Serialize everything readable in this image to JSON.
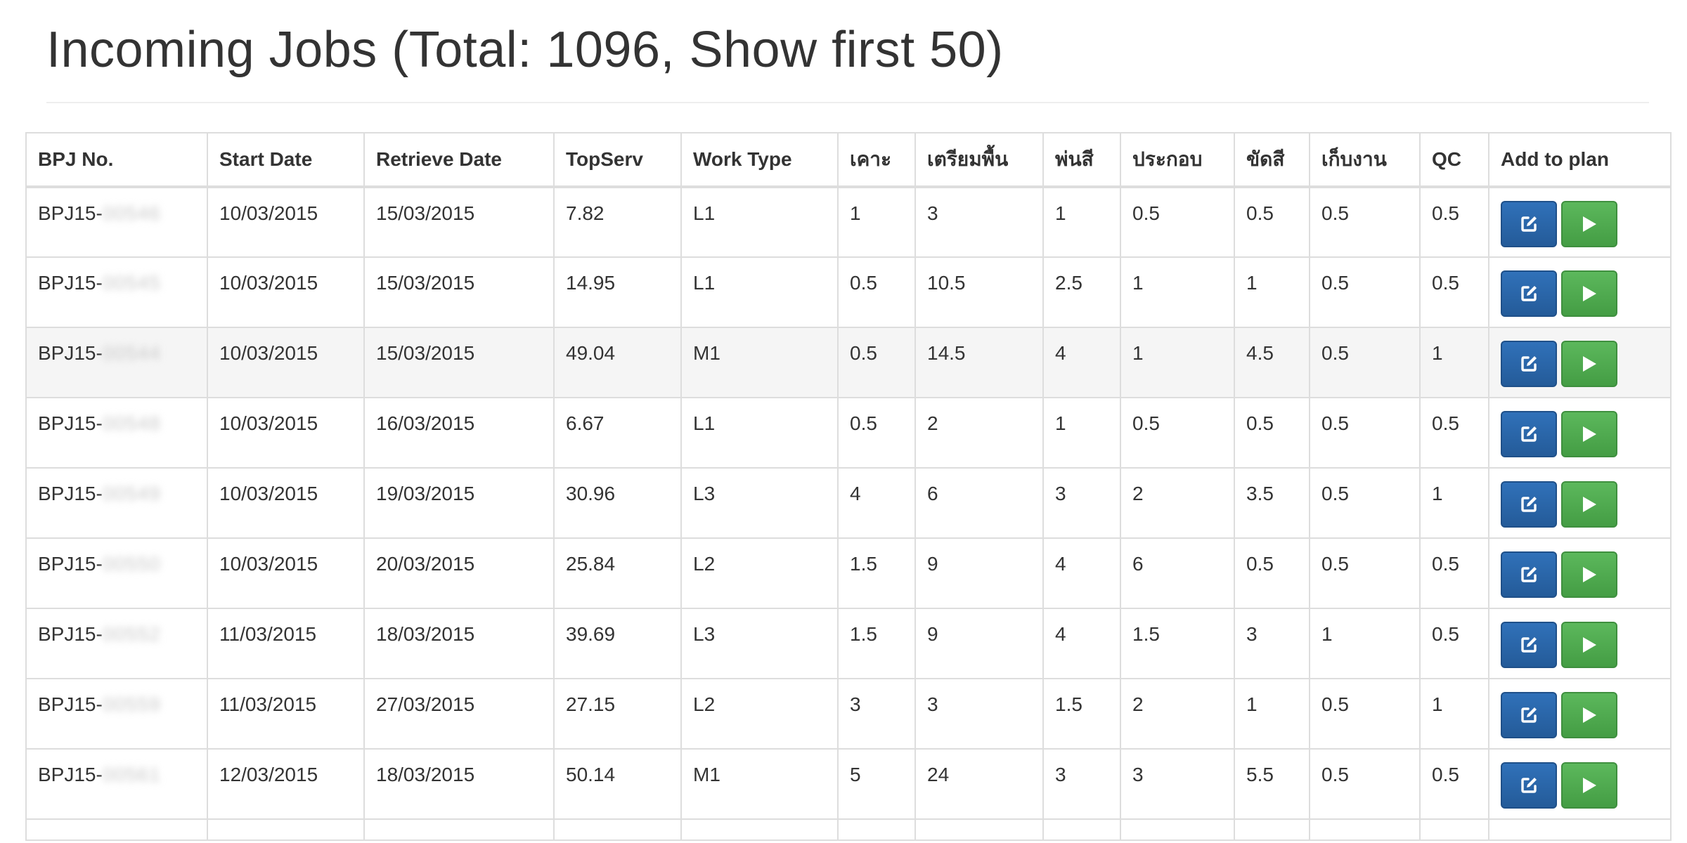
{
  "page": {
    "title": "Incoming Jobs (Total: 1096, Show first 50)"
  },
  "colors": {
    "edit_button": "#286090",
    "play_button": "#5cb85c",
    "border": "#dddddd",
    "hover_row": "#f5f5f5"
  },
  "table": {
    "headers": {
      "bpj_no": "BPJ No.",
      "start_date": "Start Date",
      "retrieve_date": "Retrieve Date",
      "topserv": "TopServ",
      "work_type": "Work Type",
      "knock": "เคาะ",
      "prep": "เตรียมพื้น",
      "paint": "พ่นสี",
      "assemble": "ประกอบ",
      "polish": "ขัดสี",
      "finish": "เก็บงาน",
      "qc": "QC",
      "add_to_plan": "Add to plan"
    },
    "rows": [
      {
        "bpj_prefix": "BPJ15-",
        "bpj_suffix": "00546",
        "start": "10/03/2015",
        "retrieve": "15/03/2015",
        "topserv": "7.82",
        "work_type": "L1",
        "knock": "1",
        "prep": "3",
        "paint": "1",
        "assemble": "0.5",
        "polish": "0.5",
        "finish": "0.5",
        "qc": "0.5"
      },
      {
        "bpj_prefix": "BPJ15-",
        "bpj_suffix": "00545",
        "start": "10/03/2015",
        "retrieve": "15/03/2015",
        "topserv": "14.95",
        "work_type": "L1",
        "knock": "0.5",
        "prep": "10.5",
        "paint": "2.5",
        "assemble": "1",
        "polish": "1",
        "finish": "0.5",
        "qc": "0.5"
      },
      {
        "bpj_prefix": "BPJ15-",
        "bpj_suffix": "00544",
        "start": "10/03/2015",
        "retrieve": "15/03/2015",
        "topserv": "49.04",
        "work_type": "M1",
        "knock": "0.5",
        "prep": "14.5",
        "paint": "4",
        "assemble": "1",
        "polish": "4.5",
        "finish": "0.5",
        "qc": "1"
      },
      {
        "bpj_prefix": "BPJ15-",
        "bpj_suffix": "00548",
        "start": "10/03/2015",
        "retrieve": "16/03/2015",
        "topserv": "6.67",
        "work_type": "L1",
        "knock": "0.5",
        "prep": "2",
        "paint": "1",
        "assemble": "0.5",
        "polish": "0.5",
        "finish": "0.5",
        "qc": "0.5"
      },
      {
        "bpj_prefix": "BPJ15-",
        "bpj_suffix": "00549",
        "start": "10/03/2015",
        "retrieve": "19/03/2015",
        "topserv": "30.96",
        "work_type": "L3",
        "knock": "4",
        "prep": "6",
        "paint": "3",
        "assemble": "2",
        "polish": "3.5",
        "finish": "0.5",
        "qc": "1"
      },
      {
        "bpj_prefix": "BPJ15-",
        "bpj_suffix": "00550",
        "start": "10/03/2015",
        "retrieve": "20/03/2015",
        "topserv": "25.84",
        "work_type": "L2",
        "knock": "1.5",
        "prep": "9",
        "paint": "4",
        "assemble": "6",
        "polish": "0.5",
        "finish": "0.5",
        "qc": "0.5"
      },
      {
        "bpj_prefix": "BPJ15-",
        "bpj_suffix": "00552",
        "start": "11/03/2015",
        "retrieve": "18/03/2015",
        "topserv": "39.69",
        "work_type": "L3",
        "knock": "1.5",
        "prep": "9",
        "paint": "4",
        "assemble": "1.5",
        "polish": "3",
        "finish": "1",
        "qc": "0.5"
      },
      {
        "bpj_prefix": "BPJ15-",
        "bpj_suffix": "00559",
        "start": "11/03/2015",
        "retrieve": "27/03/2015",
        "topserv": "27.15",
        "work_type": "L2",
        "knock": "3",
        "prep": "3",
        "paint": "1.5",
        "assemble": "2",
        "polish": "1",
        "finish": "0.5",
        "qc": "1"
      },
      {
        "bpj_prefix": "BPJ15-",
        "bpj_suffix": "00561",
        "start": "12/03/2015",
        "retrieve": "18/03/2015",
        "topserv": "50.14",
        "work_type": "M1",
        "knock": "5",
        "prep": "24",
        "paint": "3",
        "assemble": "3",
        "polish": "5.5",
        "finish": "0.5",
        "qc": "0.5"
      }
    ]
  }
}
